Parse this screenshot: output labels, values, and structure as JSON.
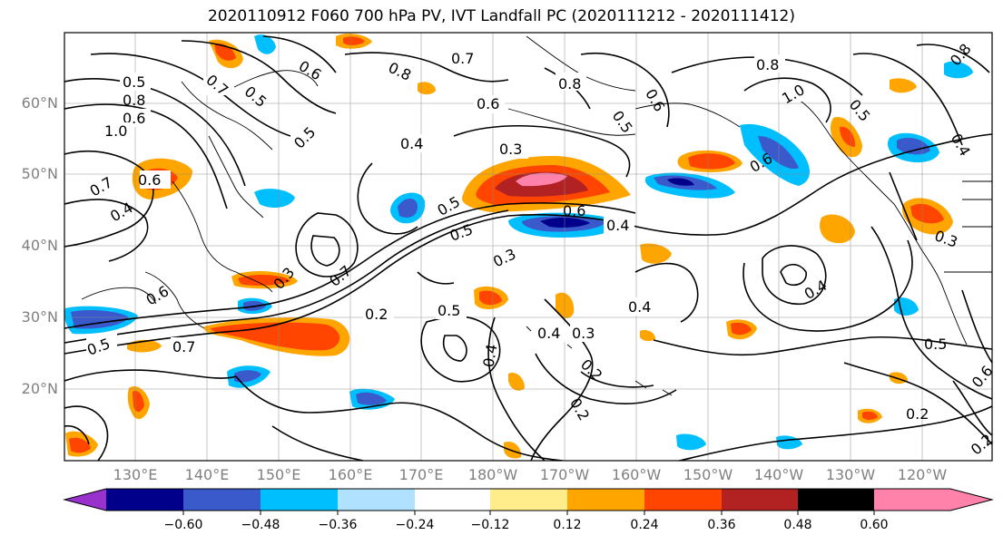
{
  "title": "2020110912 F060 700 hPa PV, IVT Landfall PC (2020111212 - 2020111412)",
  "lat_labels": [
    "60°N",
    "50°N",
    "40°N",
    "30°N",
    "20°N"
  ],
  "lon_labels": [
    "130°E",
    "140°E",
    "150°E",
    "160°E",
    "170°E",
    "180°W",
    "170°W",
    "160°W",
    "150°W",
    "140°W",
    "130°W",
    "120°W"
  ],
  "colorbar": {
    "colors": [
      "#9932cc",
      "#00008b",
      "#3a5acb",
      "#00bfff",
      "#b0e2ff",
      "#ffffff",
      "#ffec8b",
      "#ffa500",
      "#ff4500",
      "#b22222",
      "#ff82ab"
    ],
    "ticks": [
      "−0.60",
      "−0.48",
      "−0.36",
      "−0.24",
      "−0.12",
      "0.12",
      "0.24",
      "0.36",
      "0.48",
      "0.60"
    ]
  },
  "contour_labels": [
    "0.5",
    "0.6",
    "0.7",
    "0.8",
    "1.0",
    "0.8",
    "0.6",
    "0.7",
    "0.5",
    "0.4",
    "0.3",
    "0.6",
    "0.4",
    "0.5",
    "0.6",
    "0.7",
    "0.3",
    "0.5",
    "0.2",
    "0.5",
    "0.4",
    "0.3",
    "0.4",
    "0.2",
    "0.4",
    "0.2",
    "0.6",
    "0.5",
    "0.6",
    "0.8",
    "1.0",
    "0.8",
    "0.5",
    "0.8",
    "0.7",
    "0.5",
    "0.3",
    "0.2",
    "0.2",
    "0.3",
    "0.4",
    "0.6",
    "0.7",
    "0.3",
    "0.4",
    "0.6",
    "0.5",
    "0.8",
    "0.5",
    "0.6"
  ]
}
